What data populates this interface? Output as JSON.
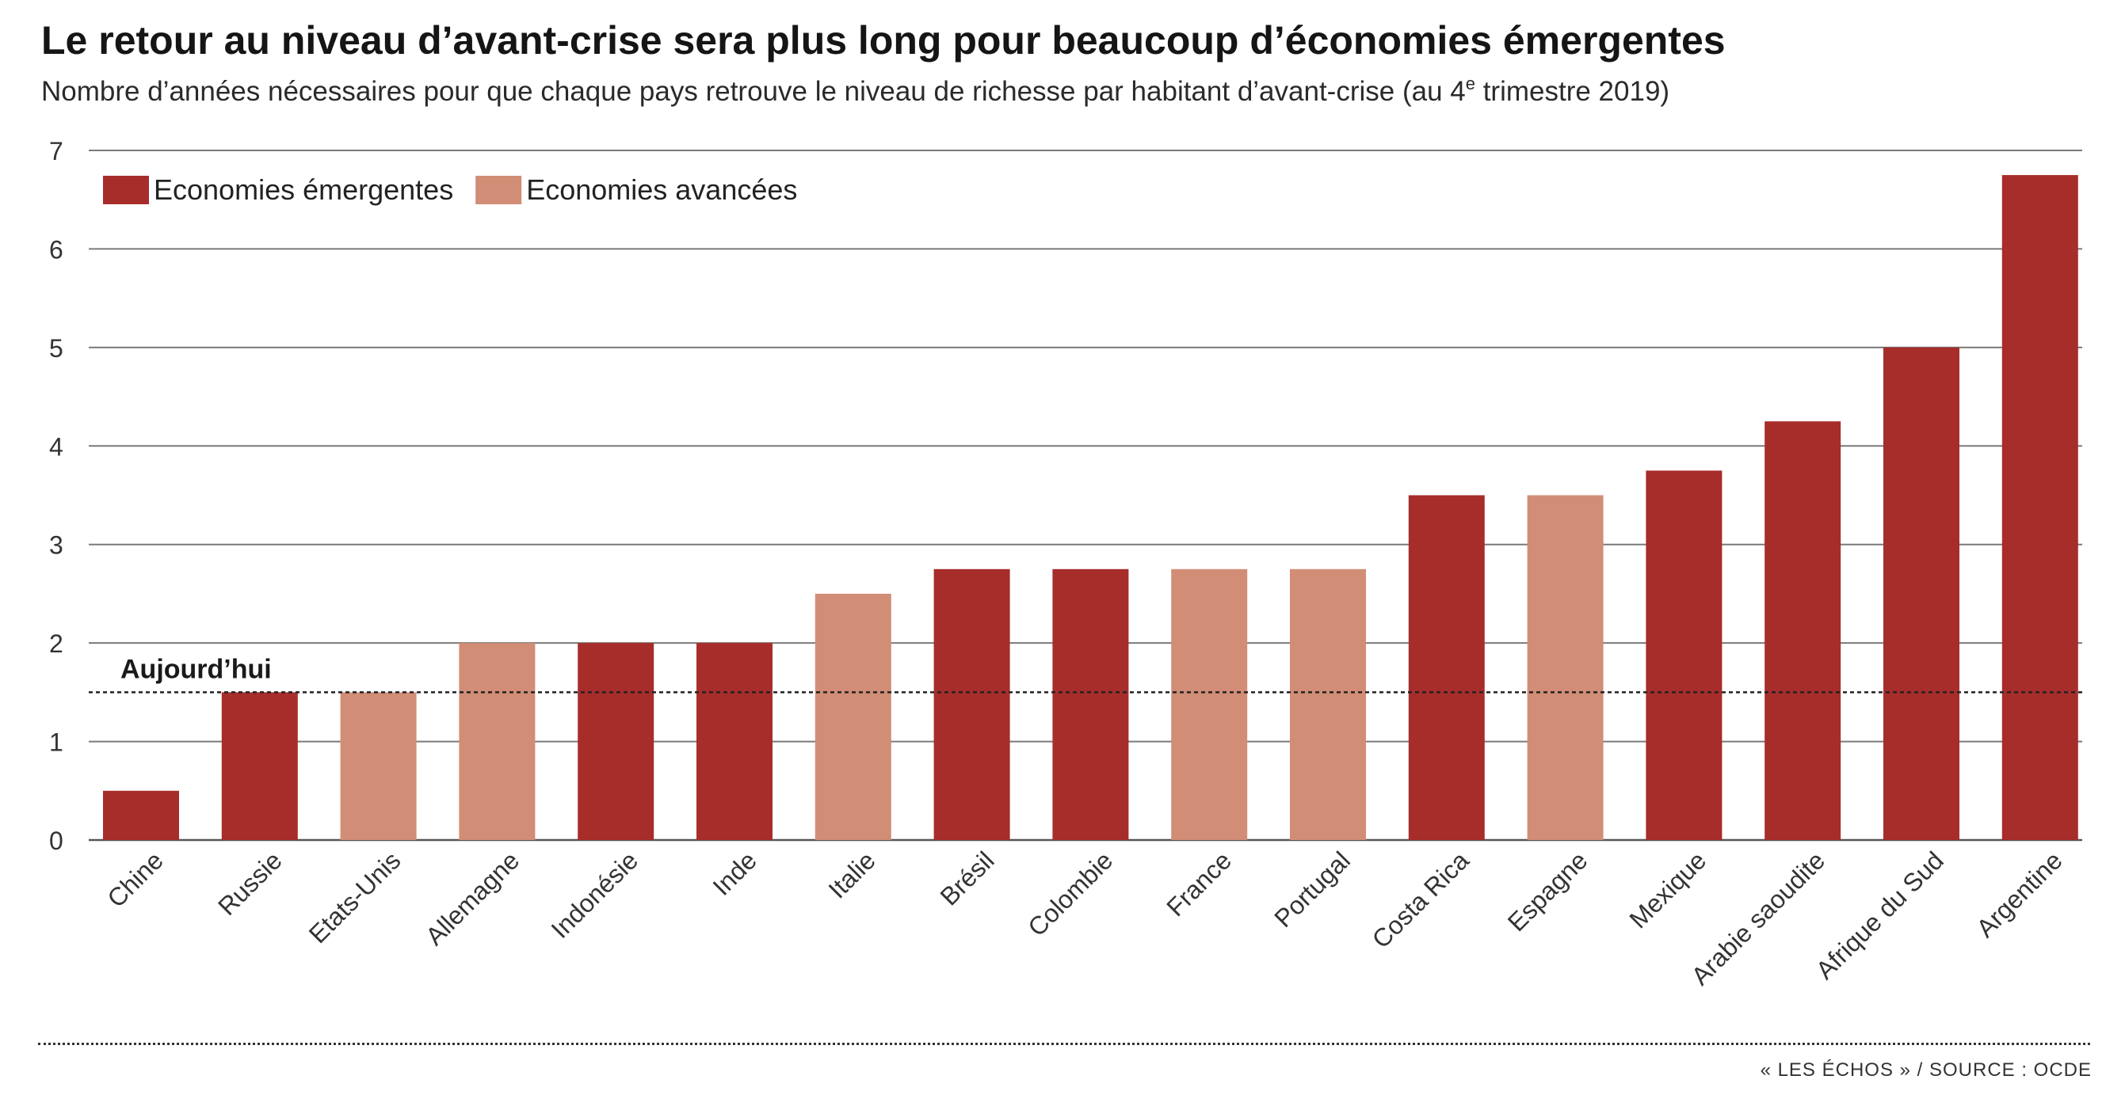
{
  "header": {
    "title": "Le retour au niveau d’avant-crise sera plus long pour beaucoup d’économies émergentes",
    "subtitle_main": "Nombre d’années nécessaires pour que chaque pays retrouve le niveau de richesse par habitant d’avant-crise (au 4",
    "subtitle_sup": "e",
    "subtitle_end": " trimestre 2019)"
  },
  "chart_data": {
    "type": "bar",
    "title": "Le retour au niveau d’avant-crise sera plus long pour beaucoup d’économies émergentes",
    "subtitle": "Nombre d’années nécessaires pour que chaque pays retrouve le niveau de richesse par habitant d’avant-crise (au 4e trimestre 2019)",
    "xlabel": "",
    "ylabel": "",
    "ylim": [
      0,
      7
    ],
    "yticks": [
      "0",
      "1",
      "2",
      "3",
      "4",
      "5",
      "6",
      "7"
    ],
    "grid": "horizontal",
    "legend_position": "top-left",
    "categories": [
      "Chine",
      "Russie",
      "Etats-Unis",
      "Allemagne",
      "Indonésie",
      "Inde",
      "Italie",
      "Brésil",
      "Colombie",
      "France",
      "Portugal",
      "Costa Rica",
      "Espagne",
      "Mexique",
      "Arabie saoudite",
      "Afrique du Sud",
      "Argentine"
    ],
    "values": [
      0.5,
      1.5,
      1.5,
      2,
      2,
      2,
      2.5,
      2.75,
      2.75,
      2.75,
      2.75,
      3.5,
      3.5,
      3.75,
      4.25,
      5,
      6.75
    ],
    "groups": [
      "emergentes",
      "emergentes",
      "avancees",
      "avancees",
      "emergentes",
      "emergentes",
      "avancees",
      "emergentes",
      "emergentes",
      "avancees",
      "avancees",
      "emergentes",
      "avancees",
      "emergentes",
      "emergentes",
      "emergentes",
      "emergentes"
    ],
    "legend": [
      {
        "key": "emergentes",
        "label": "Economies émergentes",
        "color": "#a72d2b"
      },
      {
        "key": "avancees",
        "label": "Economies avancées",
        "color": "#d28d77"
      }
    ],
    "reference_line": {
      "value": 1.5,
      "label": "Aujourd’hui"
    }
  },
  "footer": {
    "source": "« LES ÉCHOS » / SOURCE : OCDE"
  }
}
